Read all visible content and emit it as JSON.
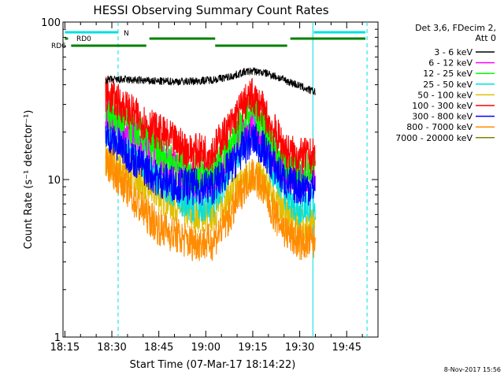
{
  "chart_data": {
    "type": "line",
    "title": "HESSI Observing Summary Count Rates",
    "xlabel": "Start Time (07-Mar-17 18:14:22)",
    "ylabel": "Count Rate (s⁻¹ detector⁻¹)",
    "y_scale": "log",
    "ylim": [
      1,
      100
    ],
    "x_ticks": [
      "18:15",
      "18:30",
      "18:45",
      "19:00",
      "19:15",
      "19:30",
      "19:45"
    ],
    "y_ticks": [
      "1",
      "10",
      "100"
    ],
    "x_range_minutes_after_18_00": [
      14.4,
      115
    ],
    "legend_placement": "right",
    "legend_header": [
      "Det 3,6, FDecim 2,",
      "Att 0"
    ],
    "timestamp": "8-Nov-2017 15:56",
    "series": [
      {
        "name": "3 - 6 keV",
        "color": "#000000",
        "t": [
          28,
          35,
          45,
          55,
          62,
          68,
          72,
          75,
          80,
          85,
          89,
          93,
          95
        ],
        "values": [
          43,
          43,
          42,
          42,
          43,
          45,
          48,
          49,
          47,
          43,
          40,
          37,
          36
        ]
      },
      {
        "name": "6 - 12 keV",
        "color": "#ff00ff",
        "t": [
          28,
          33,
          38,
          45,
          55,
          62,
          68,
          72,
          75,
          78,
          82,
          86,
          90,
          93,
          95
        ],
        "values": [
          26,
          22,
          18,
          14,
          10,
          10,
          15,
          21,
          24,
          20,
          14,
          11,
          10,
          11,
          11
        ]
      },
      {
        "name": "12 - 25 keV",
        "color": "#00ff00",
        "t": [
          28,
          33,
          38,
          45,
          55,
          62,
          68,
          72,
          75,
          78,
          82,
          86,
          90,
          93,
          95
        ],
        "values": [
          28,
          24,
          20,
          15,
          11,
          11,
          17,
          24,
          28,
          23,
          16,
          12,
          11,
          12,
          12
        ]
      },
      {
        "name": "25 - 50 keV",
        "color": "#00e0e0",
        "t": [
          28,
          33,
          38,
          45,
          55,
          62,
          68,
          72,
          75,
          78,
          82,
          86,
          90,
          93,
          95
        ],
        "values": [
          22,
          19,
          15,
          10,
          7,
          7,
          12,
          18,
          21,
          17,
          11,
          8,
          6.5,
          7,
          7
        ]
      },
      {
        "name": "50 - 100 keV",
        "color": "#e0c000",
        "t": [
          28,
          33,
          38,
          45,
          55,
          62,
          68,
          72,
          75,
          78,
          82,
          86,
          90,
          93,
          95
        ],
        "values": [
          14,
          12,
          10,
          8,
          6,
          6,
          8,
          10,
          11,
          10,
          8,
          6,
          5.5,
          5,
          5
        ]
      },
      {
        "name": "100 - 300 keV",
        "color": "#ff0000",
        "t": [
          28,
          33,
          38,
          45,
          55,
          62,
          68,
          72,
          75,
          78,
          82,
          86,
          90,
          93,
          95
        ],
        "values": [
          35,
          30,
          25,
          20,
          15,
          15,
          22,
          30,
          34,
          28,
          20,
          15,
          14,
          14,
          14
        ]
      },
      {
        "name": "300 - 800 keV",
        "color": "#0000ff",
        "t": [
          28,
          33,
          38,
          45,
          55,
          62,
          68,
          72,
          75,
          78,
          82,
          86,
          90,
          93,
          95
        ],
        "values": [
          19,
          16,
          13,
          10,
          9,
          9,
          12,
          16,
          18,
          16,
          12,
          9.5,
          9,
          9,
          9
        ]
      },
      {
        "name": "800 - 7000 keV",
        "color": "#ff8c00",
        "t": [
          28,
          33,
          38,
          45,
          55,
          62,
          68,
          72,
          75,
          78,
          82,
          86,
          90,
          93,
          95
        ],
        "values": [
          13,
          10,
          7,
          5,
          4,
          4,
          6,
          9,
          11,
          9,
          6,
          4.5,
          4,
          4,
          4
        ]
      },
      {
        "name": "7000 - 20000 keV",
        "color": "#808000",
        "t": [],
        "values": []
      }
    ],
    "vlines": [
      {
        "t": 32.0,
        "style": "dashed",
        "color": "#00e0e0"
      },
      {
        "t": 94.2,
        "style": "solid",
        "color": "#00e0e0"
      },
      {
        "t": 111.5,
        "style": "dashed",
        "color": "#00e0e0"
      }
    ],
    "flag_bars": [
      {
        "label": "N",
        "color": "#00e0e0",
        "segments": [
          [
            15,
            32
          ],
          [
            94.5,
            111
          ]
        ],
        "row": 0
      },
      {
        "label": "RD0",
        "color": "#008000",
        "segments": [
          [
            15,
            16
          ],
          [
            42,
            63
          ],
          [
            87,
            111
          ]
        ],
        "row": 1
      },
      {
        "label": "RD6",
        "color": "#008000",
        "segments": [
          [
            17,
            41
          ],
          [
            63,
            86
          ]
        ],
        "row": 2
      }
    ]
  }
}
